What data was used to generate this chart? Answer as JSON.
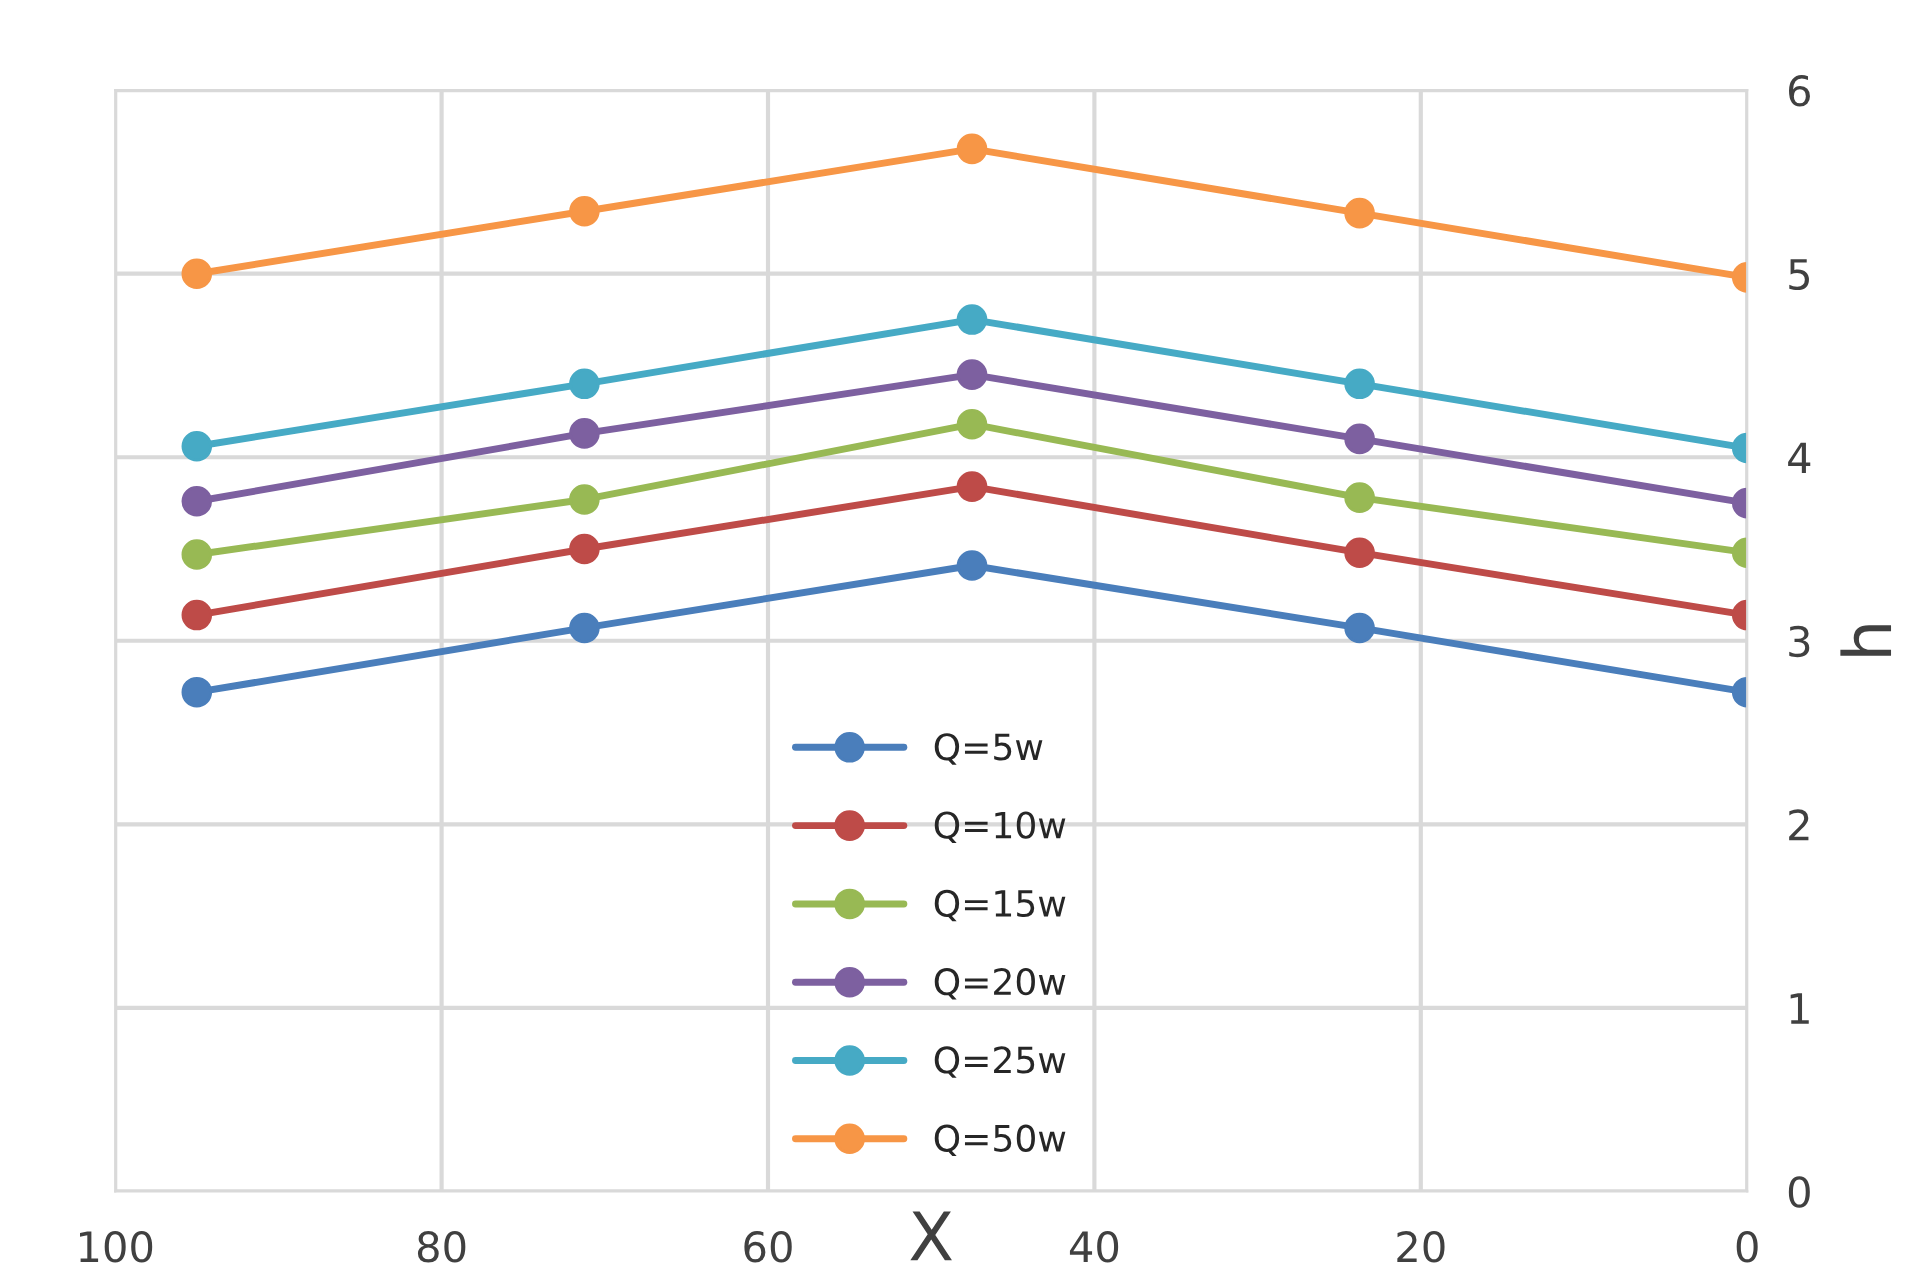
{
  "chart_data": {
    "type": "line",
    "xlabel": "X",
    "ylabel": "h",
    "x": [
      95,
      71.25,
      47.5,
      23.75,
      0
    ],
    "series": [
      {
        "name": "Q=5w",
        "color": "#4a7ebb",
        "values": [
          2.72,
          3.07,
          3.41,
          3.07,
          2.72
        ]
      },
      {
        "name": "Q=10w",
        "color": "#be4b48",
        "values": [
          3.14,
          3.5,
          3.84,
          3.48,
          3.14
        ]
      },
      {
        "name": "Q=15w",
        "color": "#98b954",
        "values": [
          3.47,
          3.77,
          4.18,
          3.78,
          3.48
        ]
      },
      {
        "name": "Q=20w",
        "color": "#7d60a0",
        "values": [
          3.76,
          4.13,
          4.45,
          4.1,
          3.75
        ]
      },
      {
        "name": "Q=25w",
        "color": "#46aac5",
        "values": [
          4.06,
          4.4,
          4.75,
          4.4,
          4.05
        ]
      },
      {
        "name": "Q=50w",
        "color": "#f79646",
        "values": [
          5.0,
          5.34,
          5.68,
          5.33,
          4.98
        ]
      }
    ],
    "xlim": [
      100,
      0
    ],
    "xticks": [
      100,
      80,
      60,
      40,
      20,
      0
    ],
    "ylim": [
      0,
      6
    ],
    "yticks": [
      0,
      1,
      2,
      3,
      4,
      5,
      6
    ],
    "grid": true,
    "legend": "bottom",
    "marker": "circle",
    "line_style": "solid"
  }
}
